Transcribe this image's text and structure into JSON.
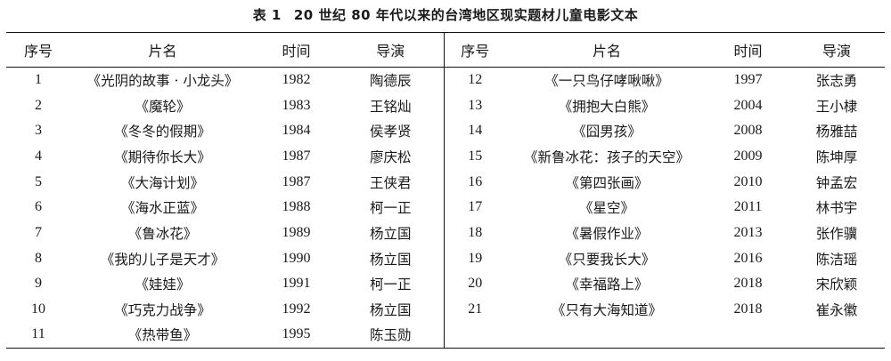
{
  "caption": {
    "label": "表 1",
    "title": "20 世纪 80 年代以来的台湾地区现实题材儿童电影文本"
  },
  "headers": [
    "序号",
    "片名",
    "时间",
    "导演",
    "序号",
    "片名",
    "时间",
    "导演"
  ],
  "left": [
    {
      "no": "1",
      "title": "《光阴的故事 · 小龙头》",
      "year": "1982",
      "director": "陶德辰"
    },
    {
      "no": "2",
      "title": "《魔轮》",
      "year": "1983",
      "director": "王铭灿"
    },
    {
      "no": "3",
      "title": "《冬冬的假期》",
      "year": "1984",
      "director": "侯孝贤"
    },
    {
      "no": "4",
      "title": "《期待你长大》",
      "year": "1987",
      "director": "廖庆松"
    },
    {
      "no": "5",
      "title": "《大海计划》",
      "year": "1987",
      "director": "王侠君"
    },
    {
      "no": "6",
      "title": "《海水正蓝》",
      "year": "1988",
      "director": "柯一正"
    },
    {
      "no": "7",
      "title": "《鲁冰花》",
      "year": "1989",
      "director": "杨立国"
    },
    {
      "no": "8",
      "title": "《我的儿子是天才》",
      "year": "1990",
      "director": "杨立国"
    },
    {
      "no": "9",
      "title": "《娃娃》",
      "year": "1991",
      "director": "柯一正"
    },
    {
      "no": "10",
      "title": "《巧克力战争》",
      "year": "1992",
      "director": "杨立国"
    },
    {
      "no": "11",
      "title": "《热带鱼》",
      "year": "1995",
      "director": "陈玉勋"
    }
  ],
  "right": [
    {
      "no": "12",
      "title": "《一只鸟仔哮啾啾》",
      "year": "1997",
      "director": "张志勇"
    },
    {
      "no": "13",
      "title": "《拥抱大白熊》",
      "year": "2004",
      "director": "王小棣"
    },
    {
      "no": "14",
      "title": "《囧男孩》",
      "year": "2008",
      "director": "杨雅喆"
    },
    {
      "no": "15",
      "title": "《新鲁冰花：孩子的天空》",
      "year": "2009",
      "director": "陈坤厚"
    },
    {
      "no": "16",
      "title": "《第四张画》",
      "year": "2010",
      "director": "钟孟宏"
    },
    {
      "no": "17",
      "title": "《星空》",
      "year": "2011",
      "director": "林书宇"
    },
    {
      "no": "18",
      "title": "《暑假作业》",
      "year": "2013",
      "director": "张作骥"
    },
    {
      "no": "19",
      "title": "《只要我长大》",
      "year": "2016",
      "director": "陈洁瑶"
    },
    {
      "no": "20",
      "title": "《幸福路上》",
      "year": "2018",
      "director": "宋欣颖"
    },
    {
      "no": "21",
      "title": "《只有大海知道》",
      "year": "2018",
      "director": "崔永徽"
    },
    {
      "no": "",
      "title": "",
      "year": "",
      "director": ""
    }
  ]
}
